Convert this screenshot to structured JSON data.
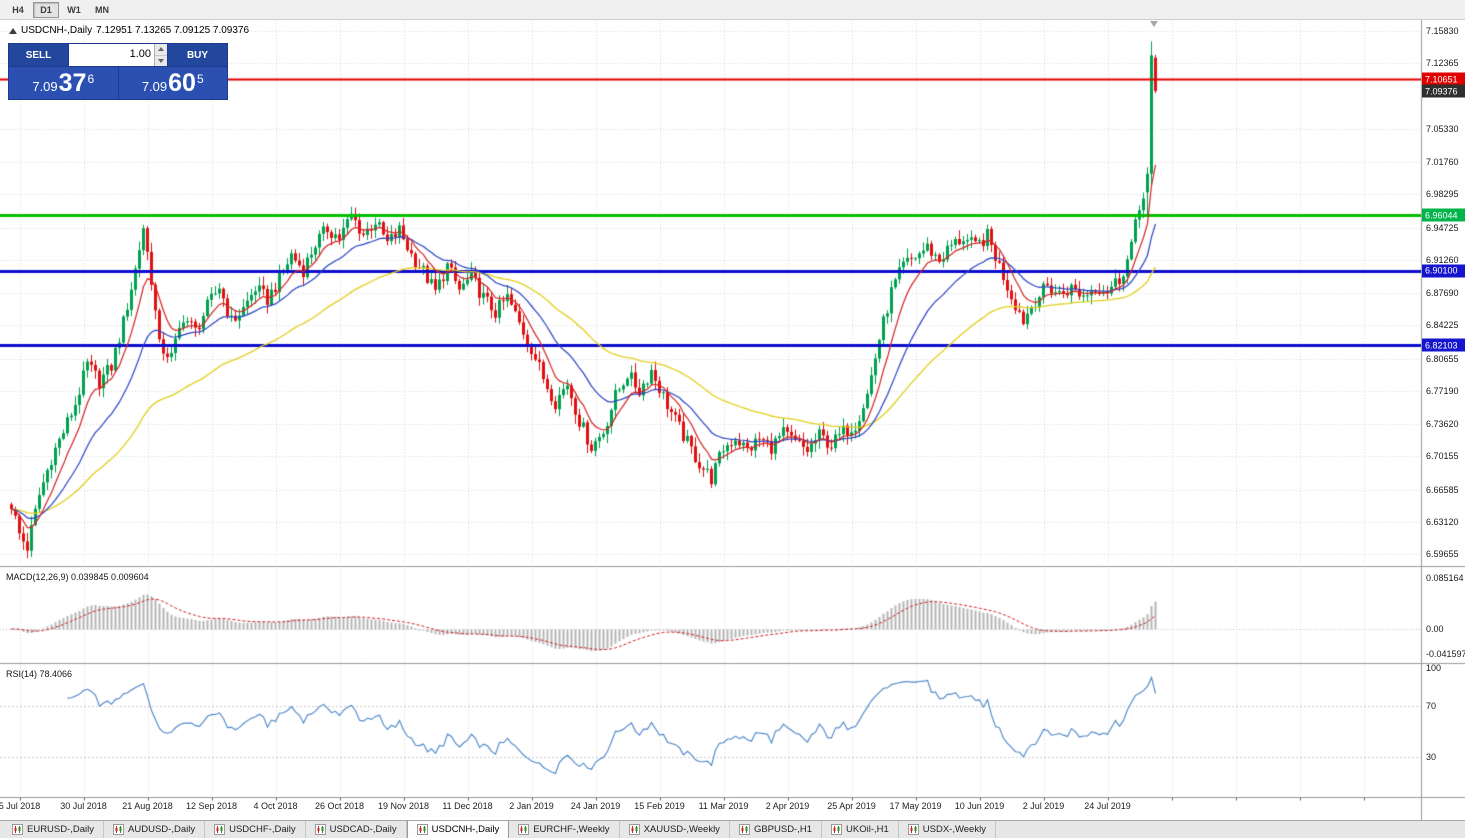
{
  "colors": {
    "bull": "#00a050",
    "bear": "#e01010",
    "ma_fast": "#d42424",
    "ma_mid": "#2b43c4",
    "ma_slow": "#e3cf1e",
    "macd_hist": "#b5b5b5",
    "macd_signal": "#cc2222",
    "rsi_line": "#4a86c8",
    "grid": "#dadada",
    "panel_blue": "#2b50b2",
    "panel_btn": "#24479e",
    "panel_border": "#1c3a8e",
    "marker_current": "#2f2f2f"
  },
  "toolbar": {
    "timeframes": [
      {
        "label": "H4",
        "active": false
      },
      {
        "label": "D1",
        "active": true
      },
      {
        "label": "W1",
        "active": false
      },
      {
        "label": "MN",
        "active": false
      }
    ]
  },
  "chart": {
    "title_symbol": "USDCNH-,Daily",
    "title_ohlc": "7.12951 7.13265 7.09125 7.09376"
  },
  "trade_panel": {
    "sell_label": "SELL",
    "buy_label": "BUY",
    "volume": "1.00",
    "sell": {
      "prefix": "7.09",
      "big": "37",
      "sup": "6"
    },
    "buy": {
      "prefix": "7.09",
      "big": "60",
      "sup": "5"
    }
  },
  "price_axis": {
    "ticks": [
      "7.15830",
      "7.12365",
      "7.05330",
      "7.01760",
      "6.98295",
      "6.94725",
      "6.91260",
      "6.87690",
      "6.84225",
      "6.80655",
      "6.77190",
      "6.73620",
      "6.70155",
      "6.66585",
      "6.63120",
      "6.59655"
    ],
    "markers": [
      {
        "label": "7.10651",
        "color": "#e00000"
      },
      {
        "label": "7.09376",
        "color": "#2f2f2f"
      },
      {
        "label": "6.96044",
        "color": "#00b44b"
      },
      {
        "label": "6.90100",
        "color": "#1515cd"
      },
      {
        "label": "6.82103",
        "color": "#1515cd"
      }
    ]
  },
  "hlines": [
    {
      "value": 7.10651,
      "color": "#e00000",
      "width": 2
    },
    {
      "value": 6.96044,
      "color": "#00c000",
      "width": 3
    },
    {
      "value": 6.901,
      "color": "#0d0dcd",
      "width": 3
    },
    {
      "value": 6.82103,
      "color": "#0d0dcd",
      "width": 3
    }
  ],
  "macd": {
    "label": "MACD(12,26,9) 0.039845 0.009604",
    "axis": [
      {
        "label": "0.085164",
        "value": 0.085164
      },
      {
        "label": "0.00",
        "value": 0
      },
      {
        "label": "-0.041597",
        "value": -0.041597
      }
    ]
  },
  "rsi": {
    "label": "RSI(14) 78.4066",
    "axis": [
      {
        "label": "100",
        "value": 100
      },
      {
        "label": "70",
        "value": 70
      },
      {
        "label": "30",
        "value": 30
      }
    ],
    "levels": [
      70,
      30
    ]
  },
  "tabs": [
    {
      "label": "EURUSD-,Daily",
      "active": false
    },
    {
      "label": "AUDUSD-,Daily",
      "active": false
    },
    {
      "label": "USDCHF-,Daily",
      "active": false
    },
    {
      "label": "USDCAD-,Daily",
      "active": false
    },
    {
      "label": "USDCNH-,Daily",
      "active": true
    },
    {
      "label": "EURCHF-,Weekly",
      "active": false
    },
    {
      "label": "XAUUSD-,Weekly",
      "active": false
    },
    {
      "label": "GBPUSD-,H1",
      "active": false
    },
    {
      "label": "UKOil-,H1",
      "active": false
    },
    {
      "label": "USDX-,Weekly",
      "active": false
    }
  ],
  "chart_data": {
    "type": "candlestick",
    "symbol": "USDCNH-",
    "timeframe": "Daily",
    "current_ohlc": {
      "open": 7.12951,
      "high": 7.13265,
      "low": 7.09125,
      "close": 7.09376
    },
    "bid": 7.09376,
    "ask": 7.09605,
    "y_range": [
      6.585,
      7.17
    ],
    "n_candles": 287,
    "x_tick_labels": [
      "5 Jul 2018",
      "30 Jul 2018",
      "21 Aug 2018",
      "12 Sep 2018",
      "4 Oct 2018",
      "26 Oct 2018",
      "19 Nov 2018",
      "11 Dec 2018",
      "2 Jan 2019",
      "24 Jan 2019",
      "15 Feb 2019",
      "11 Mar 2019",
      "2 Apr 2019",
      "25 Apr 2019",
      "17 May 2019",
      "10 Jun 2019",
      "2 Jul 2019",
      "24 Jul 2019"
    ],
    "close_keyframes": [
      [
        0,
        6.65
      ],
      [
        2,
        6.618
      ],
      [
        4,
        6.604
      ],
      [
        7,
        6.66
      ],
      [
        10,
        6.7
      ],
      [
        13,
        6.728
      ],
      [
        16,
        6.758
      ],
      [
        19,
        6.8
      ],
      [
        22,
        6.782
      ],
      [
        25,
        6.798
      ],
      [
        28,
        6.845
      ],
      [
        31,
        6.902
      ],
      [
        33,
        6.948
      ],
      [
        35,
        6.892
      ],
      [
        37,
        6.82
      ],
      [
        40,
        6.808
      ],
      [
        43,
        6.852
      ],
      [
        46,
        6.836
      ],
      [
        49,
        6.862
      ],
      [
        52,
        6.884
      ],
      [
        55,
        6.846
      ],
      [
        58,
        6.86
      ],
      [
        61,
        6.882
      ],
      [
        64,
        6.87
      ],
      [
        67,
        6.892
      ],
      [
        70,
        6.918
      ],
      [
        73,
        6.902
      ],
      [
        76,
        6.93
      ],
      [
        79,
        6.946
      ],
      [
        82,
        6.936
      ],
      [
        85,
        6.96
      ],
      [
        88,
        6.94
      ],
      [
        91,
        6.954
      ],
      [
        94,
        6.93
      ],
      [
        97,
        6.944
      ],
      [
        100,
        6.918
      ],
      [
        103,
        6.9
      ],
      [
        106,
        6.878
      ],
      [
        109,
        6.906
      ],
      [
        112,
        6.88
      ],
      [
        115,
        6.894
      ],
      [
        118,
        6.872
      ],
      [
        121,
        6.856
      ],
      [
        124,
        6.872
      ],
      [
        127,
        6.844
      ],
      [
        130,
        6.818
      ],
      [
        133,
        6.786
      ],
      [
        136,
        6.76
      ],
      [
        139,
        6.78
      ],
      [
        142,
        6.74
      ],
      [
        145,
        6.712
      ],
      [
        148,
        6.728
      ],
      [
        151,
        6.766
      ],
      [
        154,
        6.79
      ],
      [
        157,
        6.772
      ],
      [
        160,
        6.794
      ],
      [
        163,
        6.766
      ],
      [
        166,
        6.74
      ],
      [
        169,
        6.716
      ],
      [
        172,
        6.694
      ],
      [
        175,
        6.678
      ],
      [
        178,
        6.71
      ],
      [
        181,
        6.722
      ],
      [
        184,
        6.708
      ],
      [
        187,
        6.72
      ],
      [
        190,
        6.712
      ],
      [
        193,
        6.726
      ],
      [
        196,
        6.716
      ],
      [
        199,
        6.708
      ],
      [
        202,
        6.724
      ],
      [
        205,
        6.714
      ],
      [
        208,
        6.728
      ],
      [
        211,
        6.736
      ],
      [
        214,
        6.768
      ],
      [
        217,
        6.828
      ],
      [
        220,
        6.878
      ],
      [
        223,
        6.906
      ],
      [
        226,
        6.916
      ],
      [
        229,
        6.926
      ],
      [
        232,
        6.912
      ],
      [
        235,
        6.928
      ],
      [
        238,
        6.936
      ],
      [
        241,
        6.926
      ],
      [
        244,
        6.938
      ],
      [
        247,
        6.906
      ],
      [
        250,
        6.874
      ],
      [
        253,
        6.848
      ],
      [
        256,
        6.87
      ],
      [
        259,
        6.884
      ],
      [
        262,
        6.876
      ],
      [
        265,
        6.882
      ],
      [
        268,
        6.874
      ],
      [
        271,
        6.884
      ],
      [
        274,
        6.88
      ],
      [
        277,
        6.892
      ],
      [
        279,
        6.912
      ],
      [
        281,
        6.948
      ],
      [
        283,
        6.985
      ]
    ],
    "last_candles": [
      [
        6.985,
        7.012,
        6.96,
        7.005
      ],
      [
        7.005,
        7.147,
        6.992,
        7.132
      ],
      [
        7.12951,
        7.13265,
        7.09125,
        7.09376
      ]
    ],
    "indicators": {
      "ma_fast_period": 8,
      "ma_mid_period": 21,
      "ma_slow_period": 55,
      "macd_params": [
        12,
        26,
        9
      ],
      "macd_values": [
        0.039845,
        0.009604
      ],
      "rsi_period": 14,
      "rsi_value": 78.4066
    }
  }
}
